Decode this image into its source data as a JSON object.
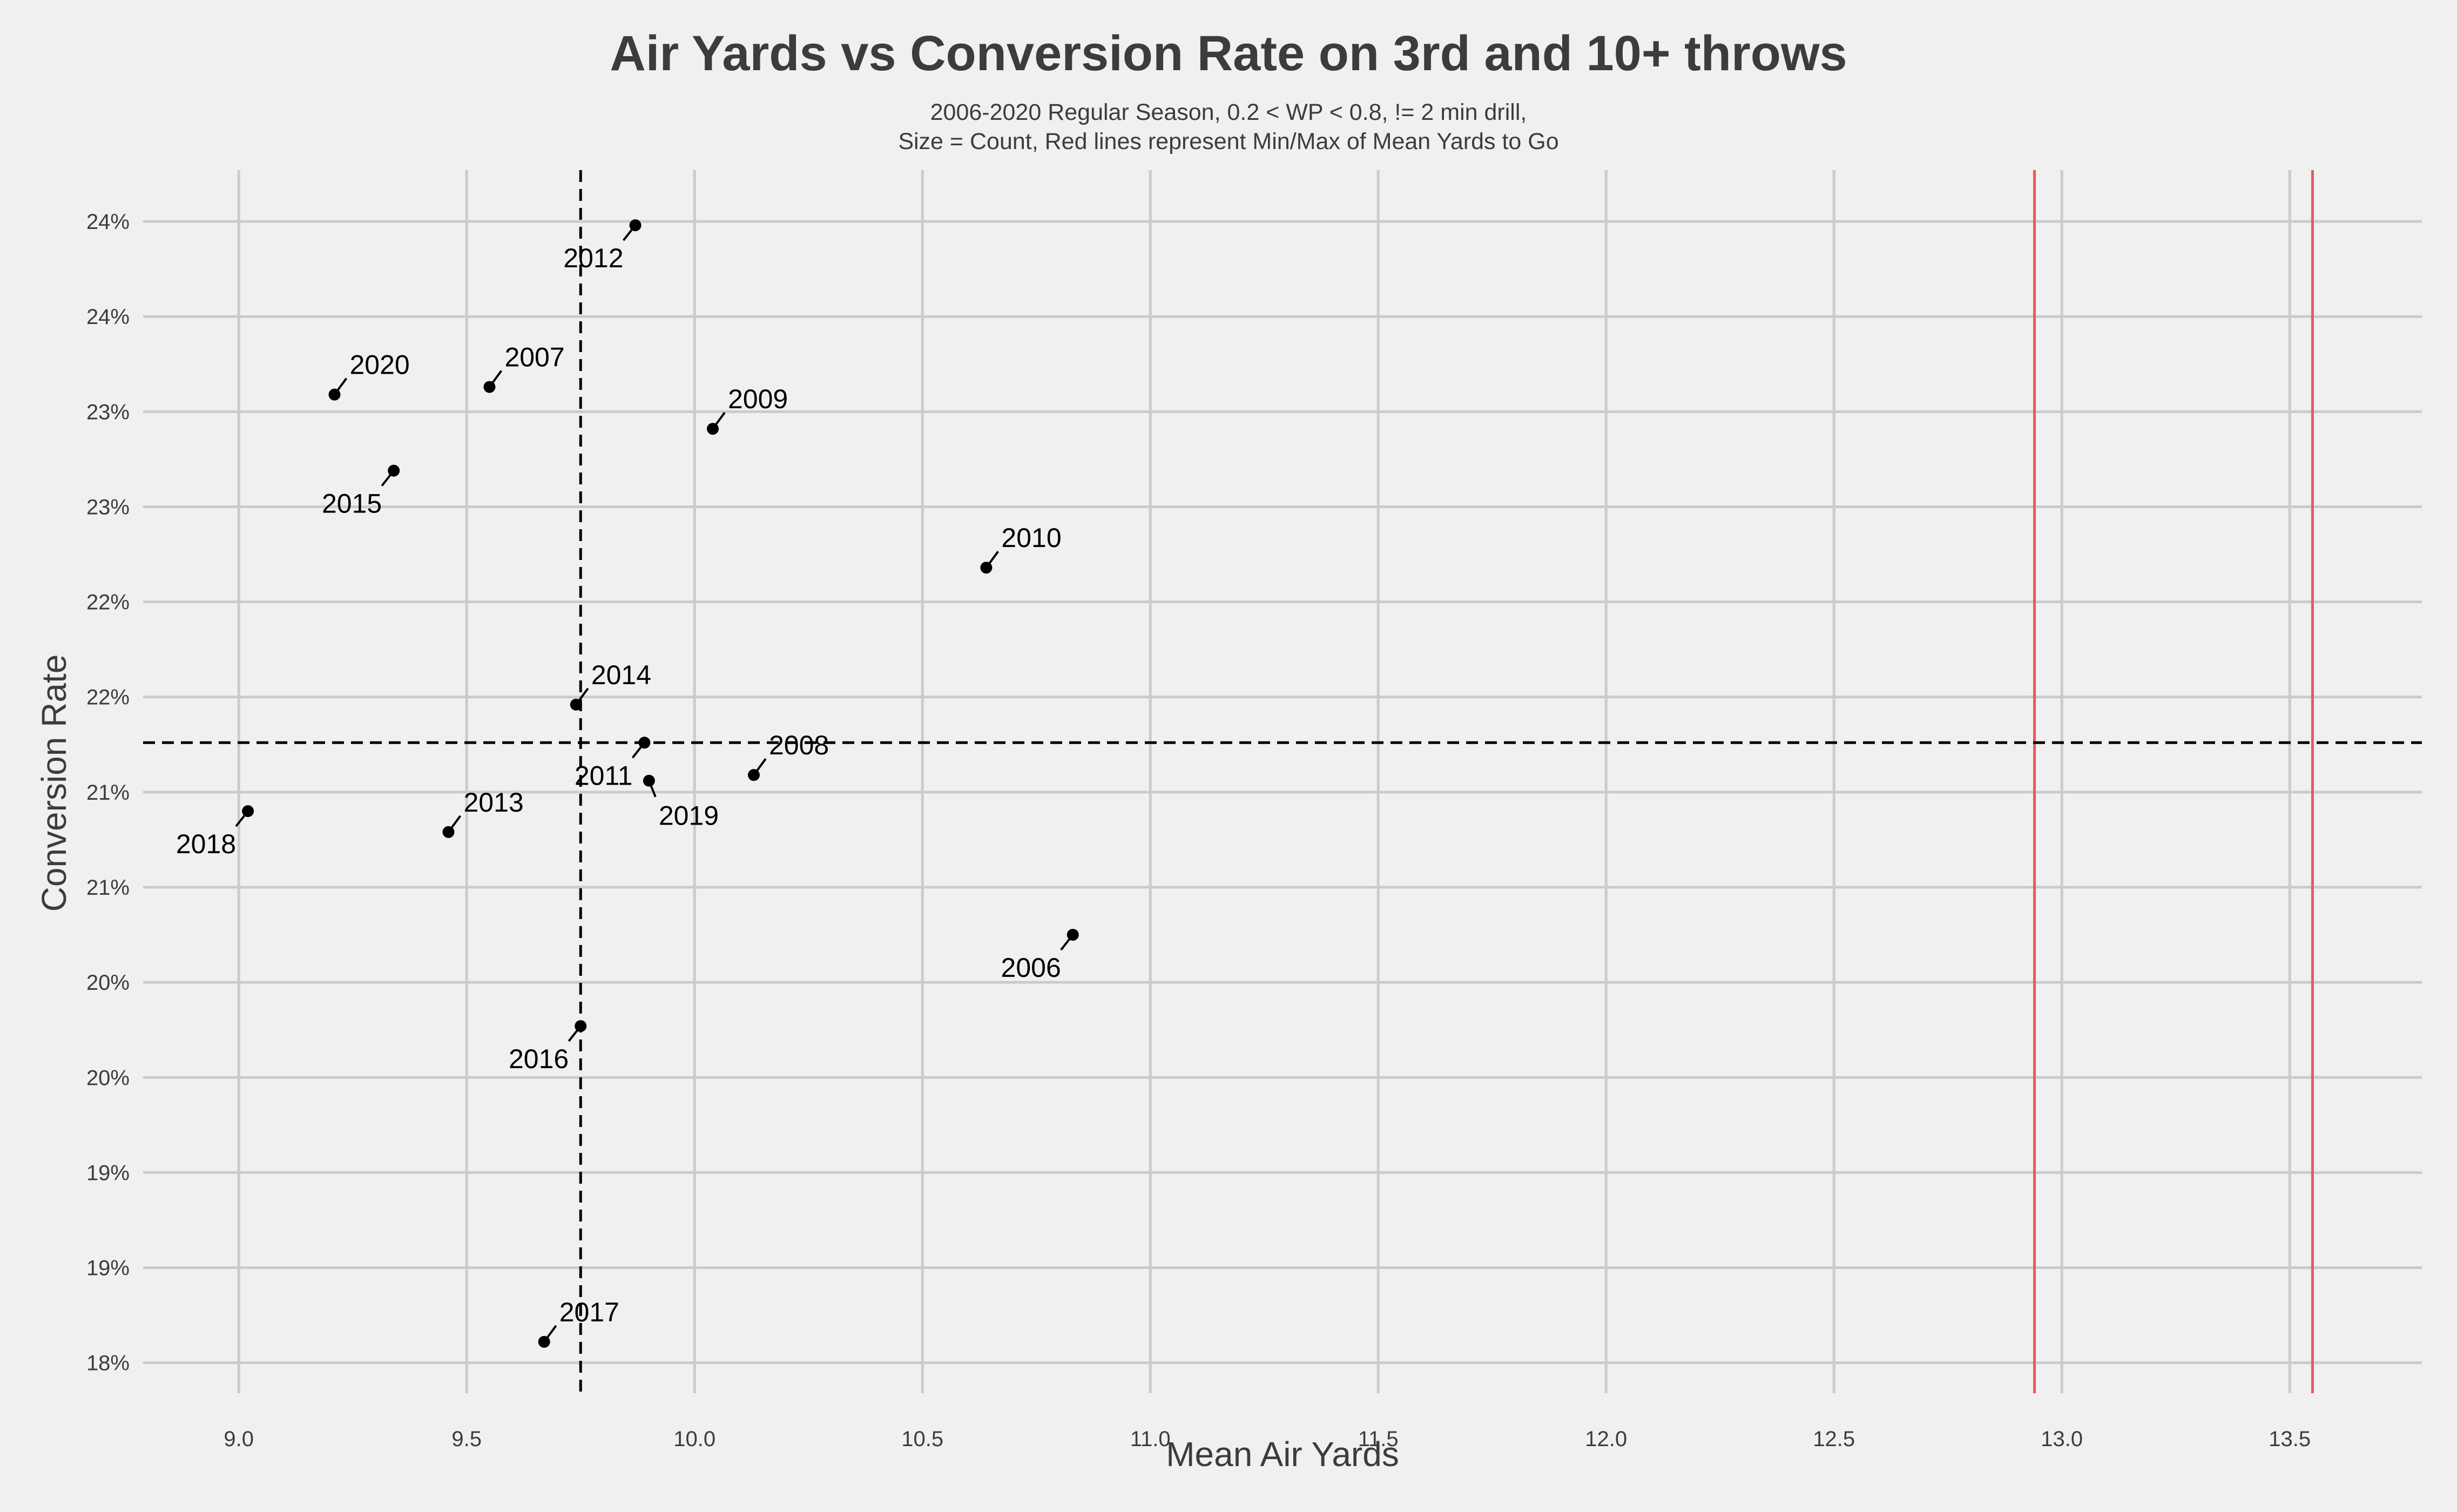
{
  "chart_data": {
    "type": "scatter",
    "title": "Air Yards vs Conversion Rate on 3rd and 10+ throws",
    "subtitle_lines": [
      "2006-2020 Regular Season, 0.2 < WP < 0.8, != 2 min drill,",
      "Size = Count, Red lines represent Min/Max of Mean Yards to Go"
    ],
    "xlabel": "Mean Air Yards",
    "ylabel": "Conversion Rate",
    "xlim": [
      8.79,
      13.79
    ],
    "ylim": [
      0.1784,
      0.2427
    ],
    "x_ticks": [
      9.0,
      9.5,
      10.0,
      10.5,
      11.0,
      11.5,
      12.0,
      12.5,
      13.0,
      13.5
    ],
    "x_tick_labels": [
      "9.0",
      "9.5",
      "10.0",
      "10.5",
      "11.0",
      "11.5",
      "12.0",
      "12.5",
      "13.0",
      "13.5"
    ],
    "y_ticks": [
      0.18,
      0.185,
      0.19,
      0.195,
      0.2,
      0.205,
      0.21,
      0.215,
      0.22,
      0.225,
      0.23,
      0.235,
      0.24
    ],
    "y_tick_labels": [
      "18%",
      "19%",
      "19%",
      "20%",
      "20%",
      "21%",
      "21%",
      "22%",
      "22%",
      "23%",
      "23%",
      "24%",
      "24%"
    ],
    "grid": true,
    "mean_lines": {
      "x": 9.75,
      "y": 0.2126
    },
    "min_max_lines": {
      "x": [
        12.94,
        13.55
      ],
      "color": "#e8595a"
    },
    "point_color": "#000000",
    "points": [
      {
        "label": "2006",
        "x": 10.83,
        "y": 0.2025,
        "label_pos": "below-left"
      },
      {
        "label": "2007",
        "x": 9.55,
        "y": 0.2313,
        "label_pos": "above-right"
      },
      {
        "label": "2008",
        "x": 10.13,
        "y": 0.2109,
        "label_pos": "above-right"
      },
      {
        "label": "2009",
        "x": 10.04,
        "y": 0.2291,
        "label_pos": "above-right"
      },
      {
        "label": "2010",
        "x": 10.64,
        "y": 0.2218,
        "label_pos": "above-right"
      },
      {
        "label": "2011",
        "x": 9.89,
        "y": 0.2126,
        "label_pos": "below-left"
      },
      {
        "label": "2012",
        "x": 9.87,
        "y": 0.2398,
        "label_pos": "below-left"
      },
      {
        "label": "2013",
        "x": 9.46,
        "y": 0.2079,
        "label_pos": "above-right"
      },
      {
        "label": "2014",
        "x": 9.74,
        "y": 0.2146,
        "label_pos": "above-right"
      },
      {
        "label": "2015",
        "x": 9.34,
        "y": 0.2269,
        "label_pos": "below-left"
      },
      {
        "label": "2016",
        "x": 9.75,
        "y": 0.1977,
        "label_pos": "below-left"
      },
      {
        "label": "2017",
        "x": 9.67,
        "y": 0.1811,
        "label_pos": "above-right"
      },
      {
        "label": "2018",
        "x": 9.02,
        "y": 0.209,
        "label_pos": "below-left"
      },
      {
        "label": "2019",
        "x": 9.9,
        "y": 0.2106,
        "label_pos": "below-right"
      },
      {
        "label": "2020",
        "x": 9.21,
        "y": 0.2309,
        "label_pos": "above-right"
      }
    ]
  }
}
